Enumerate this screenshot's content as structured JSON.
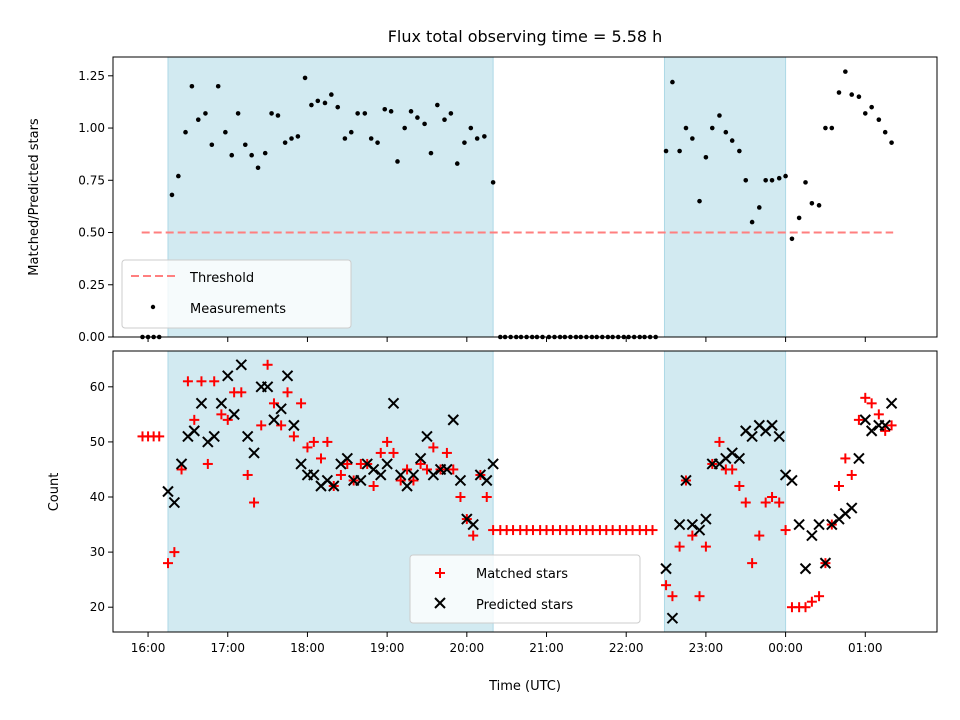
{
  "chart_data": [
    {
      "type": "scatter",
      "title": "Flux total observing time = 5.58 h",
      "ylabel": "Matched/Predicted stars",
      "xlabel": "",
      "ylim": [
        0,
        1.34
      ],
      "yticks": [
        "0.00",
        "0.25",
        "0.50",
        "0.75",
        "1.00",
        "1.25"
      ],
      "ytick_values": [
        0,
        0.25,
        0.5,
        0.75,
        1.0,
        1.25
      ],
      "xlim": [
        15.56,
        25.9
      ],
      "grid": false,
      "legend": "lower-left",
      "shaded_intervals": [
        [
          16.25,
          20.33
        ],
        [
          22.48,
          24.0
        ]
      ],
      "threshold": {
        "name": "Threshold",
        "y": 0.5,
        "x": [
          15.92,
          25.35
        ],
        "color": "#ff7f7f"
      },
      "series": [
        {
          "name": "Measurements",
          "color": "#000000",
          "x": [
            15.93,
            16.0,
            16.07,
            16.14,
            16.3,
            16.38,
            16.47,
            16.55,
            16.63,
            16.72,
            16.8,
            16.88,
            16.97,
            17.05,
            17.13,
            17.22,
            17.3,
            17.38,
            17.47,
            17.55,
            17.63,
            17.72,
            17.8,
            17.88,
            17.97,
            18.05,
            18.13,
            18.22,
            18.3,
            18.38,
            18.47,
            18.55,
            18.63,
            18.72,
            18.8,
            18.88,
            18.97,
            19.05,
            19.13,
            19.22,
            19.3,
            19.38,
            19.47,
            19.55,
            19.63,
            19.72,
            19.8,
            19.88,
            19.97,
            20.05,
            20.13,
            20.22,
            20.33,
            20.42,
            20.48,
            20.55,
            20.62,
            20.68,
            20.75,
            20.82,
            20.88,
            20.95,
            21.03,
            21.1,
            21.17,
            21.23,
            21.3,
            21.37,
            21.43,
            21.5,
            21.57,
            21.63,
            21.7,
            21.77,
            21.83,
            21.9,
            21.97,
            22.03,
            22.1,
            22.17,
            22.23,
            22.3,
            22.37,
            22.5,
            22.58,
            22.67,
            22.75,
            22.83,
            22.92,
            23.0,
            23.08,
            23.17,
            23.25,
            23.33,
            23.42,
            23.5,
            23.58,
            23.67,
            23.75,
            23.83,
            23.92,
            24.0,
            24.08,
            24.17,
            24.25,
            24.33,
            24.42,
            24.5,
            24.58,
            24.67,
            24.75,
            24.83,
            24.92,
            25.0,
            25.08,
            25.17,
            25.25,
            25.33
          ],
          "values": [
            0.0,
            0.0,
            0.0,
            0.0,
            0.68,
            0.77,
            0.98,
            1.2,
            1.04,
            1.07,
            0.92,
            1.2,
            0.98,
            0.87,
            1.07,
            0.92,
            0.87,
            0.81,
            0.88,
            1.07,
            1.06,
            0.93,
            0.95,
            0.96,
            1.24,
            1.11,
            1.13,
            1.12,
            1.16,
            1.1,
            0.95,
            0.98,
            1.07,
            1.07,
            0.95,
            0.93,
            1.09,
            1.08,
            0.84,
            1.0,
            1.08,
            1.05,
            1.02,
            0.88,
            1.11,
            1.04,
            1.07,
            0.83,
            0.93,
            1.0,
            0.95,
            0.96,
            0.74,
            0.0,
            0.0,
            0.0,
            0.0,
            0.0,
            0.0,
            0.0,
            0.0,
            0.0,
            0.0,
            0.0,
            0.0,
            0.0,
            0.0,
            0.0,
            0.0,
            0.0,
            0.0,
            0.0,
            0.0,
            0.0,
            0.0,
            0.0,
            0.0,
            0.0,
            0.0,
            0.0,
            0.0,
            0.0,
            0.0,
            0.89,
            1.22,
            0.89,
            1.0,
            0.95,
            0.65,
            0.86,
            1.0,
            1.06,
            0.98,
            0.94,
            0.89,
            0.75,
            0.55,
            0.62,
            0.75,
            0.75,
            0.76,
            0.77,
            0.47,
            0.57,
            0.74,
            0.64,
            0.63,
            1.0,
            1.0,
            1.17,
            1.27,
            1.16,
            1.15,
            1.07,
            1.1,
            1.04,
            0.98,
            0.93
          ]
        }
      ]
    },
    {
      "type": "scatter",
      "title": "",
      "ylabel": "Count",
      "xlabel": "Time (UTC)",
      "ylim": [
        15.5,
        66.5
      ],
      "yticks": [
        "20",
        "30",
        "40",
        "50",
        "60"
      ],
      "ytick_values": [
        20,
        30,
        40,
        50,
        60
      ],
      "xlim": [
        15.56,
        25.9
      ],
      "xtick_values": [
        16,
        17,
        18,
        19,
        20,
        21,
        22,
        23,
        24,
        25
      ],
      "xtick_labels": [
        "16:00",
        "17:00",
        "18:00",
        "19:00",
        "20:00",
        "21:00",
        "22:00",
        "23:00",
        "00:00",
        "01:00"
      ],
      "grid": false,
      "legend": "lower-center",
      "shaded_intervals": [
        [
          16.25,
          20.33
        ],
        [
          22.48,
          24.0
        ]
      ],
      "series": [
        {
          "name": "Matched stars",
          "marker": "plus",
          "color": "#ff0000",
          "x": [
            15.93,
            16.0,
            16.07,
            16.14,
            16.25,
            16.33,
            16.42,
            16.5,
            16.58,
            16.67,
            16.75,
            16.83,
            16.92,
            17.0,
            17.08,
            17.17,
            17.25,
            17.33,
            17.42,
            17.5,
            17.58,
            17.67,
            17.75,
            17.83,
            17.92,
            18.0,
            18.08,
            18.17,
            18.25,
            18.33,
            18.42,
            18.5,
            18.58,
            18.67,
            18.75,
            18.83,
            18.92,
            19.0,
            19.08,
            19.17,
            19.25,
            19.33,
            19.42,
            19.5,
            19.58,
            19.67,
            19.75,
            19.83,
            19.92,
            20.0,
            20.08,
            20.17,
            20.25,
            20.33,
            20.42,
            20.5,
            20.58,
            20.67,
            20.75,
            20.83,
            20.92,
            21.0,
            21.08,
            21.17,
            21.25,
            21.33,
            21.42,
            21.5,
            21.58,
            21.67,
            21.75,
            21.83,
            21.92,
            22.0,
            22.08,
            22.17,
            22.25,
            22.33,
            22.5,
            22.58,
            22.67,
            22.75,
            22.83,
            22.92,
            23.0,
            23.08,
            23.17,
            23.25,
            23.33,
            23.42,
            23.5,
            23.58,
            23.67,
            23.75,
            23.83,
            23.92,
            24.0,
            24.08,
            24.17,
            24.25,
            24.33,
            24.42,
            24.5,
            24.58,
            24.67,
            24.75,
            24.83,
            24.92,
            25.0,
            25.08,
            25.17,
            25.25,
            25.33
          ],
          "values": [
            51,
            51,
            51,
            51,
            28,
            30,
            45,
            61,
            54,
            61,
            46,
            61,
            55,
            54,
            59,
            59,
            44,
            39,
            53,
            64,
            57,
            53,
            59,
            51,
            57,
            49,
            50,
            47,
            50,
            42,
            44,
            46,
            43,
            46,
            46,
            42,
            48,
            50,
            48,
            43,
            45,
            43,
            46,
            45,
            49,
            45,
            48,
            45,
            40,
            36,
            33,
            44,
            40,
            34,
            34,
            34,
            34,
            34,
            34,
            34,
            34,
            34,
            34,
            34,
            34,
            34,
            34,
            34,
            34,
            34,
            34,
            34,
            34,
            34,
            34,
            34,
            34,
            34,
            24,
            22,
            31,
            43,
            33,
            22,
            31,
            46,
            50,
            45,
            45,
            42,
            39,
            28,
            33,
            39,
            40,
            39,
            34,
            20,
            20,
            20,
            21,
            22,
            28,
            35,
            42,
            47,
            44,
            54,
            58,
            57,
            55,
            52,
            53
          ]
        },
        {
          "name": "Predicted stars",
          "marker": "x",
          "color": "#000000",
          "x": [
            16.25,
            16.33,
            16.42,
            16.5,
            16.58,
            16.67,
            16.75,
            16.83,
            16.92,
            17.0,
            17.08,
            17.17,
            17.25,
            17.33,
            17.42,
            17.5,
            17.58,
            17.67,
            17.75,
            17.83,
            17.92,
            18.0,
            18.08,
            18.17,
            18.25,
            18.33,
            18.42,
            18.5,
            18.58,
            18.67,
            18.75,
            18.83,
            18.92,
            19.0,
            19.08,
            19.17,
            19.25,
            19.33,
            19.42,
            19.5,
            19.58,
            19.67,
            19.75,
            19.83,
            19.92,
            20.0,
            20.08,
            20.17,
            20.25,
            20.33,
            22.5,
            22.58,
            22.67,
            22.75,
            22.83,
            22.92,
            23.0,
            23.08,
            23.17,
            23.25,
            23.33,
            23.42,
            23.5,
            23.58,
            23.67,
            23.75,
            23.83,
            23.92,
            24.0,
            24.08,
            24.17,
            24.25,
            24.33,
            24.42,
            24.5,
            24.58,
            24.67,
            24.75,
            24.83,
            24.92,
            25.0,
            25.08,
            25.17,
            25.25,
            25.33
          ],
          "values": [
            41,
            39,
            46,
            51,
            52,
            57,
            50,
            51,
            57,
            62,
            55,
            64,
            51,
            48,
            60,
            60,
            54,
            56,
            62,
            53,
            46,
            44,
            44,
            42,
            43,
            42,
            46,
            47,
            43,
            43,
            46,
            45,
            44,
            46,
            57,
            44,
            42,
            44,
            47,
            51,
            44,
            45,
            45,
            54,
            43,
            36,
            35,
            44,
            43,
            46,
            27,
            18,
            35,
            43,
            35,
            34,
            36,
            46,
            46,
            47,
            48,
            47,
            52,
            51,
            53,
            52,
            53,
            51,
            44,
            43,
            35,
            27,
            33,
            35,
            28,
            35,
            36,
            37,
            38,
            47,
            54,
            52,
            53,
            53,
            57
          ]
        }
      ]
    }
  ],
  "legends": {
    "top": [
      "Threshold",
      "Measurements"
    ],
    "bottom": [
      "Matched stars",
      "Predicted stars"
    ]
  }
}
